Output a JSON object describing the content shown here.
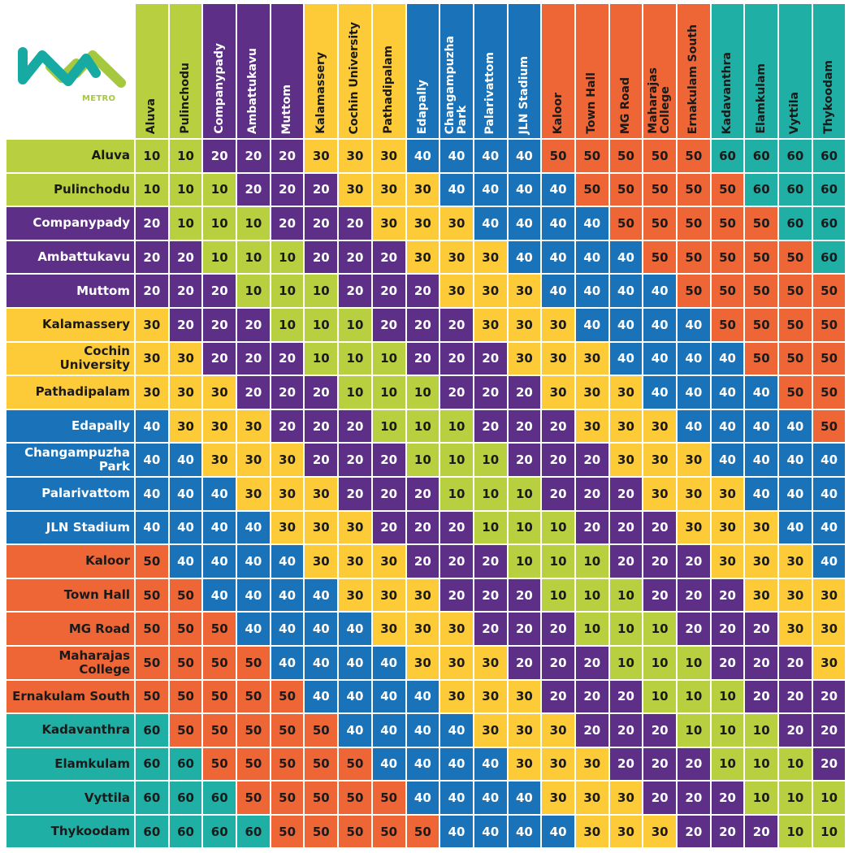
{
  "logo": {
    "text": "METRO"
  },
  "colors": {
    "10": "#b8d03f",
    "20": "#5e2f87",
    "30": "#fdcb38",
    "40": "#1a72b8",
    "50": "#ee6536",
    "60": "#1fafa4",
    "text_dark": "#1a1a1a",
    "text_light": "#ffffff"
  },
  "stations": [
    {
      "name": "Aluva",
      "row_label": "Aluva",
      "zone": "10"
    },
    {
      "name": "Pulinchodu",
      "row_label": "Pulinchodu",
      "zone": "10"
    },
    {
      "name": "Companypady",
      "row_label": "Companypady",
      "zone": "20"
    },
    {
      "name": "Ambattukavu",
      "row_label": "Ambattukavu",
      "zone": "20"
    },
    {
      "name": "Muttom",
      "row_label": "Muttom",
      "zone": "20"
    },
    {
      "name": "Kalamassery",
      "row_label": "Kalamassery",
      "zone": "30"
    },
    {
      "name": "Cochin University",
      "row_label": "Cochin\nUniversity",
      "zone": "30"
    },
    {
      "name": "Pathadipalam",
      "row_label": "Pathadipalam",
      "zone": "30"
    },
    {
      "name": "Edapally",
      "row_label": "Edapally",
      "zone": "40"
    },
    {
      "name": "Changampuzha\nPark",
      "row_label": "Changampuzha\nPark",
      "zone": "40"
    },
    {
      "name": "Palarivattom",
      "row_label": "Palarivattom",
      "zone": "40"
    },
    {
      "name": "JLN Stadium",
      "row_label": "JLN Stadium",
      "zone": "40"
    },
    {
      "name": "Kaloor",
      "row_label": "Kaloor",
      "zone": "50"
    },
    {
      "name": "Town Hall",
      "row_label": "Town Hall",
      "zone": "50"
    },
    {
      "name": "MG Road",
      "row_label": "MG Road",
      "zone": "50"
    },
    {
      "name": "Maharajas\nCollege",
      "row_label": "Maharajas\nCollege",
      "zone": "50"
    },
    {
      "name": "Ernakulam South",
      "row_label": "Ernakulam South",
      "zone": "50"
    },
    {
      "name": "Kadavanthra",
      "row_label": "Kadavanthra",
      "zone": "60"
    },
    {
      "name": "Elamkulam",
      "row_label": "Elamkulam",
      "zone": "60"
    },
    {
      "name": "Vyttila",
      "row_label": "Vyttila",
      "zone": "60"
    },
    {
      "name": "Thykoodam",
      "row_label": "Thykoodam",
      "zone": "60"
    }
  ],
  "fares": [
    [
      10,
      10,
      20,
      20,
      20,
      30,
      30,
      30,
      40,
      40,
      40,
      40,
      50,
      50,
      50,
      50,
      50,
      60,
      60,
      60,
      60
    ],
    [
      10,
      10,
      10,
      20,
      20,
      20,
      30,
      30,
      30,
      40,
      40,
      40,
      40,
      50,
      50,
      50,
      50,
      50,
      60,
      60,
      60
    ],
    [
      20,
      10,
      10,
      10,
      20,
      20,
      20,
      30,
      30,
      30,
      40,
      40,
      40,
      40,
      50,
      50,
      50,
      50,
      50,
      60,
      60
    ],
    [
      20,
      20,
      10,
      10,
      10,
      20,
      20,
      20,
      30,
      30,
      30,
      40,
      40,
      40,
      40,
      50,
      50,
      50,
      50,
      50,
      60
    ],
    [
      20,
      20,
      20,
      10,
      10,
      10,
      20,
      20,
      20,
      30,
      30,
      30,
      40,
      40,
      40,
      40,
      50,
      50,
      50,
      50,
      50
    ],
    [
      30,
      20,
      20,
      20,
      10,
      10,
      10,
      20,
      20,
      20,
      30,
      30,
      30,
      40,
      40,
      40,
      40,
      50,
      50,
      50,
      50
    ],
    [
      30,
      30,
      20,
      20,
      20,
      10,
      10,
      10,
      20,
      20,
      20,
      30,
      30,
      30,
      40,
      40,
      40,
      40,
      50,
      50,
      50
    ],
    [
      30,
      30,
      30,
      20,
      20,
      20,
      10,
      10,
      10,
      20,
      20,
      20,
      30,
      30,
      30,
      40,
      40,
      40,
      40,
      50,
      50
    ],
    [
      40,
      30,
      30,
      30,
      20,
      20,
      20,
      10,
      10,
      10,
      20,
      20,
      20,
      30,
      30,
      30,
      40,
      40,
      40,
      40,
      50
    ],
    [
      40,
      40,
      30,
      30,
      30,
      20,
      20,
      20,
      10,
      10,
      10,
      20,
      20,
      20,
      30,
      30,
      30,
      40,
      40,
      40,
      40
    ],
    [
      40,
      40,
      40,
      30,
      30,
      30,
      20,
      20,
      20,
      10,
      10,
      10,
      20,
      20,
      20,
      30,
      30,
      30,
      40,
      40,
      40
    ],
    [
      40,
      40,
      40,
      40,
      30,
      30,
      30,
      20,
      20,
      20,
      10,
      10,
      10,
      20,
      20,
      20,
      30,
      30,
      30,
      40,
      40
    ],
    [
      50,
      40,
      40,
      40,
      40,
      30,
      30,
      30,
      20,
      20,
      20,
      10,
      10,
      10,
      20,
      20,
      20,
      30,
      30,
      30,
      40
    ],
    [
      50,
      50,
      40,
      40,
      40,
      40,
      30,
      30,
      30,
      20,
      20,
      20,
      10,
      10,
      10,
      20,
      20,
      20,
      30,
      30,
      30
    ],
    [
      50,
      50,
      50,
      40,
      40,
      40,
      40,
      30,
      30,
      30,
      20,
      20,
      20,
      10,
      10,
      10,
      20,
      20,
      20,
      30,
      30
    ],
    [
      50,
      50,
      50,
      50,
      40,
      40,
      40,
      40,
      30,
      30,
      30,
      20,
      20,
      20,
      10,
      10,
      10,
      20,
      20,
      20,
      30
    ],
    [
      50,
      50,
      50,
      50,
      50,
      40,
      40,
      40,
      40,
      30,
      30,
      30,
      20,
      20,
      20,
      10,
      10,
      10,
      20,
      20,
      20
    ],
    [
      60,
      50,
      50,
      50,
      50,
      50,
      40,
      40,
      40,
      40,
      30,
      30,
      30,
      20,
      20,
      20,
      10,
      10,
      10,
      20,
      20
    ],
    [
      60,
      60,
      50,
      50,
      50,
      50,
      50,
      40,
      40,
      40,
      40,
      30,
      30,
      30,
      20,
      20,
      20,
      10,
      10,
      10,
      20
    ],
    [
      60,
      60,
      60,
      50,
      50,
      50,
      50,
      50,
      40,
      40,
      40,
      40,
      30,
      30,
      30,
      20,
      20,
      20,
      10,
      10,
      10
    ],
    [
      60,
      60,
      60,
      60,
      50,
      50,
      50,
      50,
      50,
      40,
      40,
      40,
      40,
      30,
      30,
      30,
      20,
      20,
      20,
      10,
      10
    ]
  ]
}
